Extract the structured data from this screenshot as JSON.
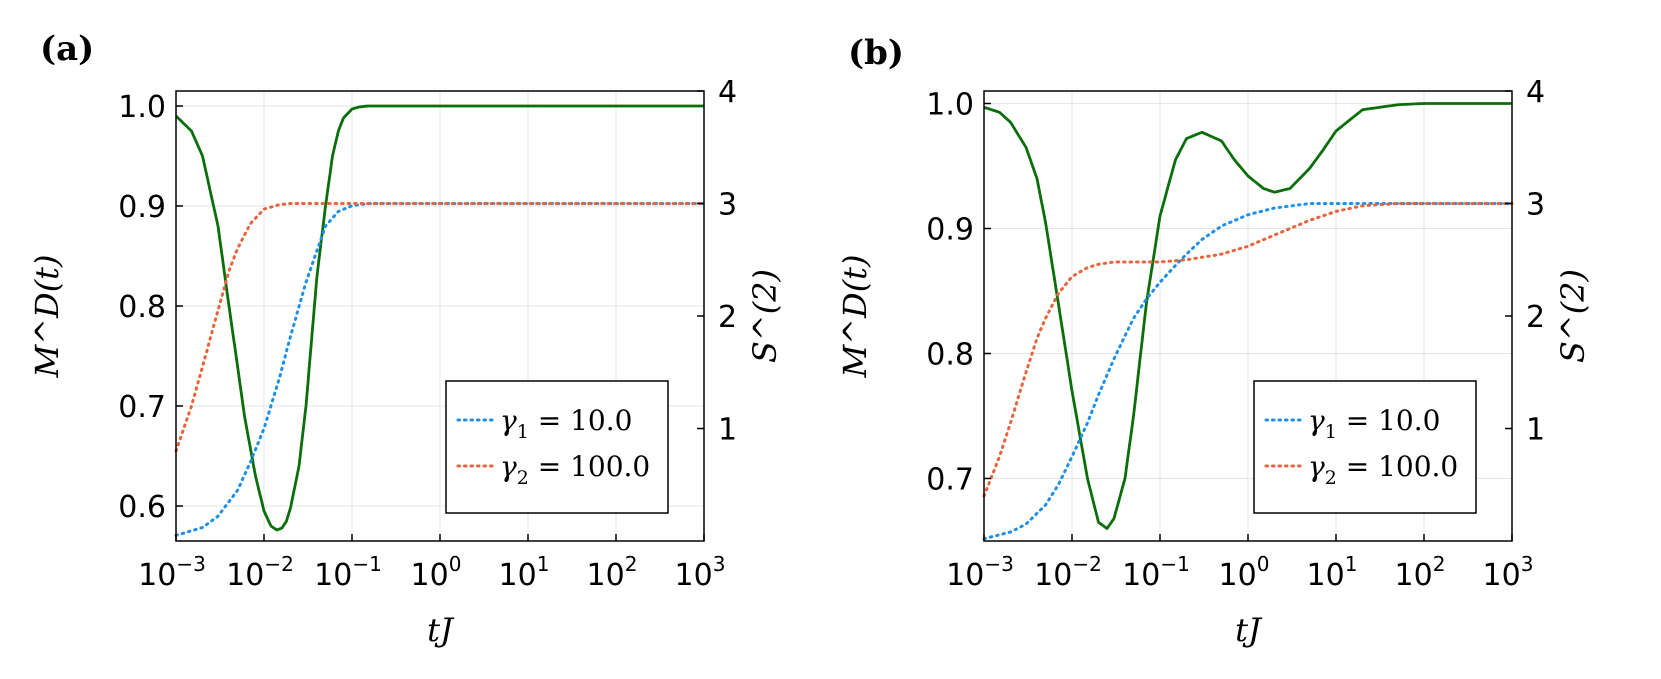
{
  "chart_data": [
    {
      "type": "line",
      "panel_label": "(a)",
      "xlabel": "tJ",
      "ylabel_left": "M^D(t)",
      "ylabel_right": "S^(2)",
      "xscale": "log",
      "xlim": [
        0.001,
        1000
      ],
      "ylim_left": [
        0.565,
        1.015
      ],
      "ylim_right": [
        0,
        4
      ],
      "xticks": [
        {
          "base": "10",
          "exp": "−3"
        },
        {
          "base": "10",
          "exp": "−2"
        },
        {
          "base": "10",
          "exp": "−1"
        },
        {
          "base": "10",
          "exp": "0"
        },
        {
          "base": "10",
          "exp": "1"
        },
        {
          "base": "10",
          "exp": "2"
        },
        {
          "base": "10",
          "exp": "3"
        }
      ],
      "yticks_left": [
        "0.6",
        "0.7",
        "0.8",
        "0.9",
        "1.0"
      ],
      "yticks_right": [
        "1",
        "2",
        "3",
        "4"
      ],
      "grid": true,
      "legend_position": "bottom-right",
      "legend": [
        {
          "sym": "γ",
          "sub": "1",
          "text": " = 10.0",
          "color": "#1e90e6"
        },
        {
          "sym": "γ",
          "sub": "2",
          "text": " = 100.0",
          "color": "#e8643c"
        }
      ],
      "series": [
        {
          "axis": "left",
          "style": "solid",
          "color": "#0a6e0a",
          "x": [
            0.001,
            0.0015,
            0.002,
            0.003,
            0.004,
            0.005,
            0.006,
            0.008,
            0.01,
            0.012,
            0.014,
            0.016,
            0.018,
            0.02,
            0.025,
            0.03,
            0.035,
            0.04,
            0.05,
            0.06,
            0.07,
            0.08,
            0.1,
            0.12,
            0.15,
            0.2,
            0.3,
            0.5,
            1,
            10,
            100,
            1000
          ],
          "y": [
            0.99,
            0.975,
            0.95,
            0.88,
            0.8,
            0.74,
            0.69,
            0.63,
            0.595,
            0.58,
            0.576,
            0.578,
            0.585,
            0.598,
            0.64,
            0.7,
            0.77,
            0.83,
            0.9,
            0.95,
            0.975,
            0.988,
            0.997,
            0.999,
            1.0,
            1.0,
            1.0,
            1.0,
            1.0,
            1.0,
            1.0,
            1.0
          ]
        },
        {
          "axis": "right",
          "style": "dotted",
          "color": "#1e90e6",
          "x": [
            0.001,
            0.002,
            0.003,
            0.005,
            0.007,
            0.01,
            0.015,
            0.02,
            0.03,
            0.05,
            0.07,
            0.1,
            0.15,
            0.2,
            0.5,
            1,
            10,
            100,
            1000
          ],
          "y": [
            0.05,
            0.12,
            0.22,
            0.45,
            0.7,
            1.0,
            1.45,
            1.82,
            2.3,
            2.8,
            2.93,
            2.98,
            3.0,
            3.0,
            3.0,
            3.0,
            3.0,
            3.0,
            3.0
          ]
        },
        {
          "axis": "right",
          "style": "dotted",
          "color": "#e8643c",
          "x": [
            0.001,
            0.0015,
            0.002,
            0.003,
            0.004,
            0.005,
            0.007,
            0.01,
            0.015,
            0.02,
            0.03,
            0.05,
            0.1,
            1,
            10,
            100,
            1000
          ],
          "y": [
            0.8,
            1.2,
            1.55,
            2.05,
            2.4,
            2.6,
            2.82,
            2.95,
            2.99,
            3.0,
            3.0,
            3.0,
            3.0,
            3.0,
            3.0,
            3.0,
            3.0
          ]
        }
      ]
    },
    {
      "type": "line",
      "panel_label": "(b)",
      "xlabel": "tJ",
      "ylabel_left": "M^D(t)",
      "ylabel_right": "S^(2)",
      "xscale": "log",
      "xlim": [
        0.001,
        1000
      ],
      "ylim_left": [
        0.65,
        1.01
      ],
      "ylim_right": [
        0,
        4
      ],
      "xticks": [
        {
          "base": "10",
          "exp": "−3"
        },
        {
          "base": "10",
          "exp": "−2"
        },
        {
          "base": "10",
          "exp": "−1"
        },
        {
          "base": "10",
          "exp": "0"
        },
        {
          "base": "10",
          "exp": "1"
        },
        {
          "base": "10",
          "exp": "2"
        },
        {
          "base": "10",
          "exp": "3"
        }
      ],
      "yticks_left": [
        "0.7",
        "0.8",
        "0.9",
        "1.0"
      ],
      "yticks_right": [
        "1",
        "2",
        "3",
        "4"
      ],
      "grid": true,
      "legend_position": "bottom-right",
      "legend": [
        {
          "sym": "γ",
          "sub": "1",
          "text": " = 10.0",
          "color": "#1e90e6"
        },
        {
          "sym": "γ",
          "sub": "2",
          "text": " = 100.0",
          "color": "#e8643c"
        }
      ],
      "series": [
        {
          "axis": "left",
          "style": "solid",
          "color": "#0a6e0a",
          "x": [
            0.001,
            0.0015,
            0.002,
            0.003,
            0.004,
            0.005,
            0.007,
            0.01,
            0.015,
            0.02,
            0.025,
            0.03,
            0.04,
            0.05,
            0.07,
            0.1,
            0.15,
            0.2,
            0.3,
            0.5,
            0.7,
            1,
            1.5,
            2,
            3,
            5,
            7,
            10,
            20,
            50,
            100,
            1000
          ],
          "y": [
            0.997,
            0.993,
            0.985,
            0.965,
            0.94,
            0.905,
            0.84,
            0.77,
            0.7,
            0.665,
            0.66,
            0.668,
            0.7,
            0.75,
            0.84,
            0.91,
            0.955,
            0.972,
            0.977,
            0.97,
            0.955,
            0.942,
            0.932,
            0.929,
            0.932,
            0.948,
            0.962,
            0.978,
            0.995,
            0.999,
            1.0,
            1.0
          ]
        },
        {
          "axis": "right",
          "style": "dotted",
          "color": "#1e90e6",
          "x": [
            0.001,
            0.002,
            0.003,
            0.005,
            0.007,
            0.01,
            0.015,
            0.02,
            0.03,
            0.05,
            0.07,
            0.1,
            0.15,
            0.2,
            0.3,
            0.5,
            1,
            2,
            5,
            10,
            20,
            50,
            100,
            1000
          ],
          "y": [
            0.02,
            0.08,
            0.15,
            0.32,
            0.5,
            0.75,
            1.05,
            1.3,
            1.62,
            1.98,
            2.15,
            2.3,
            2.45,
            2.55,
            2.68,
            2.8,
            2.9,
            2.96,
            3.0,
            3.0,
            3.0,
            3.0,
            3.0,
            3.0
          ]
        },
        {
          "axis": "right",
          "style": "dotted",
          "color": "#e8643c",
          "x": [
            0.001,
            0.0015,
            0.002,
            0.003,
            0.004,
            0.005,
            0.007,
            0.01,
            0.015,
            0.02,
            0.03,
            0.05,
            0.1,
            0.2,
            0.5,
            1,
            2,
            5,
            10,
            20,
            50,
            100,
            1000
          ],
          "y": [
            0.4,
            0.75,
            1.05,
            1.5,
            1.8,
            1.98,
            2.2,
            2.35,
            2.43,
            2.46,
            2.48,
            2.48,
            2.48,
            2.5,
            2.55,
            2.62,
            2.72,
            2.85,
            2.93,
            2.98,
            3.0,
            3.0,
            3.0
          ]
        }
      ]
    }
  ]
}
